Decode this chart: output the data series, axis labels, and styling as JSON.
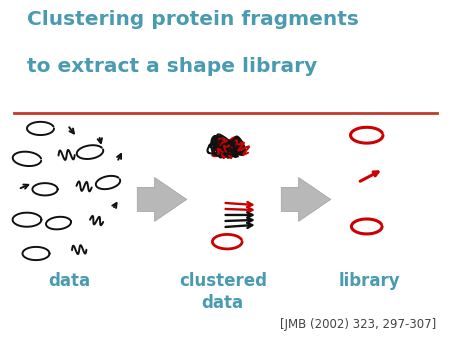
{
  "title_line1": "Clustering protein fragments",
  "title_line2": "to extract a shape library",
  "title_color": "#4A9BB0",
  "title_fontsize": 14.5,
  "title_fontweight": "bold",
  "divider_color": "#C0392B",
  "label_color": "#4A9BB0",
  "label_fontsize": 12,
  "label_data": "data",
  "label_clustered": "clustered\ndata",
  "label_library": "library",
  "citation": "[JMB (2002) 323, 297-307]",
  "citation_color": "#444444",
  "citation_fontsize": 8.5,
  "bg_color": "#ffffff",
  "arrow_fill": "#b8b8b8",
  "arrow_edge": "#a0a0a0",
  "black_color": "#111111",
  "red_color": "#cc0000"
}
